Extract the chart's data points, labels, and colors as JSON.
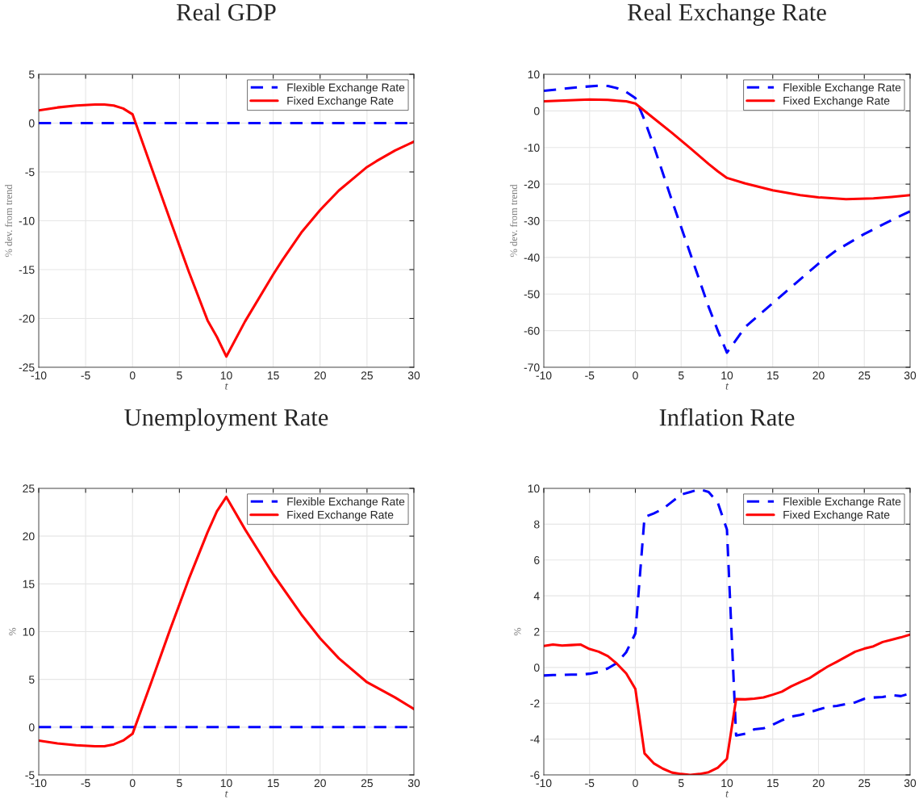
{
  "chart_data": [
    {
      "type": "line",
      "title": "Real GDP",
      "xlabel": "t",
      "ylabel": "% dev. from trend",
      "xlim": [
        -10,
        30
      ],
      "xticks": [
        -10,
        -5,
        0,
        5,
        10,
        15,
        20,
        25,
        30
      ],
      "ylim": [
        -25,
        5
      ],
      "yticks": [
        -25,
        -20,
        -15,
        -10,
        -5,
        0,
        5
      ],
      "grid": true,
      "legend": "top right",
      "series": [
        {
          "name": "Flexible Exchange Rate",
          "color": "#0000ff",
          "line_style": "dashed",
          "x": [
            -10,
            30
          ],
          "values": [
            0,
            0
          ]
        },
        {
          "name": "Fixed Exchange Rate",
          "color": "#ff0000",
          "line_style": "solid",
          "x": [
            -10,
            -8,
            -6,
            -4,
            -3,
            -2,
            -1,
            0,
            2,
            4,
            6,
            8,
            9,
            10,
            12,
            15,
            16,
            18,
            20,
            22,
            24,
            25,
            26,
            28,
            30
          ],
          "values": [
            1.3,
            1.6,
            1.8,
            1.9,
            1.9,
            1.8,
            1.5,
            0.9,
            -4.5,
            -9.9,
            -15.2,
            -20.2,
            -21.9,
            -23.9,
            -20.3,
            -15.5,
            -14,
            -11.2,
            -8.9,
            -6.9,
            -5.3,
            -4.5,
            -3.9,
            -2.8,
            -1.9
          ]
        }
      ]
    },
    {
      "type": "line",
      "title": "Real Exchange Rate",
      "xlabel": "t",
      "ylabel": "% dev. from trend",
      "xlim": [
        -10,
        30
      ],
      "xticks": [
        -10,
        -5,
        0,
        5,
        10,
        15,
        20,
        25,
        30
      ],
      "ylim": [
        -70,
        10
      ],
      "yticks": [
        -70,
        -60,
        -50,
        -40,
        -30,
        -20,
        -10,
        0,
        10
      ],
      "grid": true,
      "legend": "top right",
      "series": [
        {
          "name": "Flexible Exchange Rate",
          "color": "#0000ff",
          "line_style": "dashed",
          "x": [
            -10,
            -8,
            -6,
            -4,
            -3,
            -2,
            -1,
            0,
            1,
            2,
            4,
            6,
            8,
            9,
            10,
            12,
            15,
            18,
            20,
            22,
            25,
            28,
            30
          ],
          "values": [
            5.5,
            6,
            6.5,
            6.9,
            6.8,
            6.2,
            5.2,
            3.5,
            -2.5,
            -9.5,
            -24.5,
            -39,
            -53.5,
            -60,
            -66,
            -59,
            -52.5,
            -46,
            -41.7,
            -38,
            -33.6,
            -29.8,
            -27.4
          ]
        },
        {
          "name": "Fixed Exchange Rate",
          "color": "#ff0000",
          "line_style": "solid",
          "x": [
            -10,
            -5,
            -3,
            -1,
            0,
            2,
            4,
            6,
            8,
            9,
            10,
            12,
            15,
            18,
            20,
            23,
            26,
            28,
            30
          ],
          "values": [
            2.6,
            3.1,
            3.0,
            2.6,
            2.0,
            -2.0,
            -6.0,
            -10.2,
            -14.5,
            -16.5,
            -18.3,
            -19.8,
            -21.7,
            -23.0,
            -23.6,
            -24.1,
            -23.9,
            -23.5,
            -23.0
          ]
        }
      ]
    },
    {
      "type": "line",
      "title": "Unemployment Rate",
      "xlabel": "t",
      "ylabel": "%",
      "xlim": [
        -10,
        30
      ],
      "xticks": [
        -10,
        -5,
        0,
        5,
        10,
        15,
        20,
        25,
        30
      ],
      "ylim": [
        -5,
        25
      ],
      "yticks": [
        -5,
        0,
        5,
        10,
        15,
        20,
        25
      ],
      "grid": true,
      "legend": "top right",
      "series": [
        {
          "name": "Flexible Exchange Rate",
          "color": "#0000ff",
          "line_style": "dashed",
          "x": [
            -10,
            30
          ],
          "values": [
            0,
            0
          ]
        },
        {
          "name": "Fixed Exchange Rate",
          "color": "#ff0000",
          "line_style": "solid",
          "x": [
            -10,
            -8,
            -6,
            -4,
            -3,
            -2,
            -1,
            0,
            2,
            4,
            6,
            8,
            9,
            10,
            12,
            15,
            18,
            20,
            22,
            25,
            28,
            30
          ],
          "values": [
            -1.4,
            -1.7,
            -1.9,
            -2.0,
            -2.0,
            -1.8,
            -1.4,
            -0.7,
            4.7,
            10.2,
            15.5,
            20.4,
            22.6,
            24.1,
            20.7,
            16,
            11.8,
            9.3,
            7.2,
            4.7,
            3.1,
            1.9
          ]
        }
      ]
    },
    {
      "type": "line",
      "title": "Inflation Rate",
      "xlabel": "t",
      "ylabel": "%",
      "xlim": [
        -10,
        30
      ],
      "xticks": [
        -10,
        -5,
        0,
        5,
        10,
        15,
        20,
        25,
        30
      ],
      "ylim": [
        -6,
        10
      ],
      "yticks": [
        -6,
        -4,
        -2,
        0,
        2,
        4,
        6,
        8,
        10
      ],
      "grid": true,
      "legend": "top right",
      "series": [
        {
          "name": "Flexible Exchange Rate",
          "color": "#0000ff",
          "line_style": "dashed",
          "x": [
            -10,
            -9,
            -8,
            -7,
            -6,
            -5,
            -4,
            -3,
            -2,
            -1,
            0,
            1,
            2,
            3,
            4,
            5,
            6,
            7,
            8,
            9,
            10,
            11,
            12,
            13,
            14,
            15,
            16,
            17,
            18,
            19,
            20,
            21,
            22,
            23,
            24,
            25,
            26,
            27,
            28,
            29,
            30
          ],
          "values": [
            -0.45,
            -0.42,
            -0.42,
            -0.4,
            -0.4,
            -0.35,
            -0.25,
            -0.05,
            0.25,
            0.85,
            1.9,
            8.4,
            8.6,
            8.85,
            9.25,
            9.65,
            9.8,
            9.95,
            9.8,
            9.2,
            7.7,
            -3.8,
            -3.7,
            -3.45,
            -3.4,
            -3.2,
            -2.95,
            -2.75,
            -2.65,
            -2.5,
            -2.35,
            -2.2,
            -2.15,
            -2.05,
            -1.95,
            -1.75,
            -1.68,
            -1.65,
            -1.55,
            -1.6,
            -1.45
          ]
        },
        {
          "name": "Fixed Exchange Rate",
          "color": "#ff0000",
          "line_style": "solid",
          "x": [
            -10,
            -9,
            -8,
            -7,
            -6,
            -5,
            -4,
            -3,
            -2,
            -1,
            0,
            1,
            2,
            3,
            4,
            5,
            6,
            7,
            8,
            9,
            10,
            11,
            12,
            13,
            14,
            15,
            16,
            17,
            18,
            19,
            20,
            21,
            22,
            23,
            24,
            25,
            26,
            27,
            28,
            29,
            30
          ],
          "values": [
            1.2,
            1.28,
            1.22,
            1.25,
            1.28,
            1.03,
            0.88,
            0.63,
            0.2,
            -0.33,
            -1.2,
            -4.8,
            -5.35,
            -5.65,
            -5.87,
            -5.95,
            -6.0,
            -5.95,
            -5.85,
            -5.6,
            -5.1,
            -1.77,
            -1.78,
            -1.74,
            -1.67,
            -1.52,
            -1.35,
            -1.06,
            -0.82,
            -0.6,
            -0.27,
            0.05,
            0.32,
            0.6,
            0.88,
            1.05,
            1.18,
            1.42,
            1.55,
            1.68,
            1.83
          ]
        }
      ]
    }
  ]
}
